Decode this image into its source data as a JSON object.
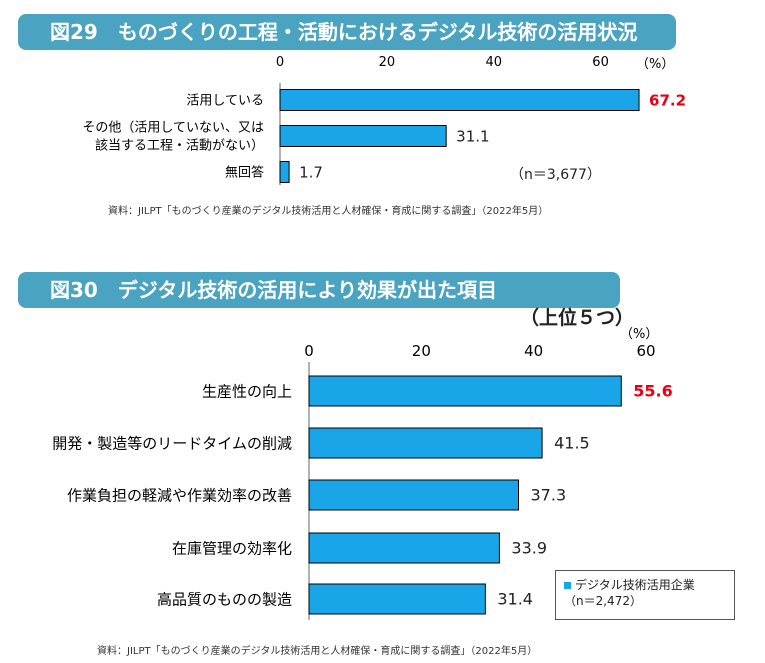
{
  "figure29": {
    "title": "図29　ものづくりの工程・活動におけるデジタル技術の活用状況",
    "note": "（n＝3,677）",
    "source": "資料：JILPT「ものづくり産業のデジタル技術活用と人材確保・育成に関する調査」（2022年5月）"
  },
  "figure30": {
    "title": "図30　デジタル技術の活用により効果が出た項目",
    "subtitle": "（上位５つ）",
    "legend_label": "デジタル技術活用企業",
    "legend_n": "（n＝2,472）",
    "source": "資料：JILPT「ものづくり産業のデジタル技術活用と人材確保・育成に関する調査」（2022年5月）"
  },
  "colors": {
    "bar": "#1aa5e8",
    "highlight": "#e60012",
    "title_bg": "#4aa3c0"
  },
  "chart_data": [
    {
      "type": "bar",
      "orientation": "horizontal",
      "categories": [
        "活用している",
        "その他（活用していない、又は\n該当する工程・活動がない）",
        "無回答"
      ],
      "values": [
        67.2,
        31.1,
        1.7
      ],
      "data_labels": [
        "67.2",
        "31.1",
        "1.7"
      ],
      "highlight_index": 0,
      "xlim": [
        0,
        70
      ],
      "ticks": [
        0,
        20,
        40,
        60
      ],
      "unit_label": "（%）",
      "grid": false
    },
    {
      "type": "bar",
      "orientation": "horizontal",
      "categories": [
        "生産性の向上",
        "開発・製造等のリードタイムの削減",
        "作業負担の軽減や作業効率の改善",
        "在庫管理の効率化",
        "高品質のものの製造"
      ],
      "values": [
        55.6,
        41.5,
        37.3,
        33.9,
        31.4
      ],
      "data_labels": [
        "55.6",
        "41.5",
        "37.3",
        "33.9",
        "31.4"
      ],
      "highlight_index": 0,
      "xlim": [
        0,
        60
      ],
      "ticks": [
        0,
        20,
        40,
        60
      ],
      "unit_label": "（%）",
      "legend_position": "bottom-right",
      "grid": false
    }
  ]
}
